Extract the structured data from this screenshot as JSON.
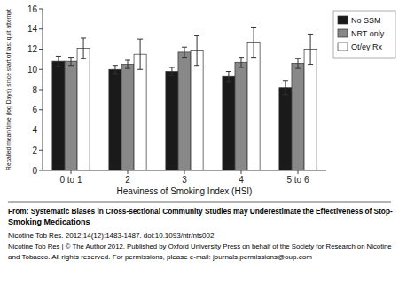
{
  "chart_data": {
    "type": "bar",
    "xlabel": "Heaviness of Smoking Index (HSI)",
    "ylabel": "Recalled mean time (log Days) since start of last quit attempt",
    "categories": [
      "0 to 1",
      "2",
      "3",
      "4",
      "5 to 6"
    ],
    "series": [
      {
        "name": "No SSM",
        "color": "#1a1a1a",
        "values": [
          10.8,
          10.0,
          9.8,
          9.3,
          8.2
        ],
        "errors": [
          0.5,
          0.4,
          0.4,
          0.5,
          0.7
        ]
      },
      {
        "name": "NRT only",
        "color": "#888888",
        "values": [
          10.8,
          10.5,
          11.7,
          10.7,
          10.6
        ],
        "errors": [
          0.4,
          0.4,
          0.5,
          0.5,
          0.5
        ]
      },
      {
        "name": "Ot/ey Rx",
        "color": "#ffffff",
        "values": [
          12.1,
          11.5,
          11.9,
          12.7,
          12.0
        ],
        "errors": [
          1.0,
          1.5,
          1.5,
          1.5,
          1.5
        ]
      }
    ],
    "ylim": [
      0,
      16
    ],
    "yticks": [
      0,
      2,
      4,
      6,
      8,
      10,
      12,
      14,
      16
    ],
    "grid": false,
    "legend": "upper right",
    "annotations": [
      "From: Systematic Biases in Cross-sectional Community Studies may Underestimate the Effectiveness of Stop-",
      "Smoking Medications",
      "Nicotine Tob Res. 2012;14(12):1483-1487. doi:10.1093/ntr/nts002",
      "Nicotine Tob Res | © The Author 2012. Published by Oxford University Press on behalf of the Society for Research on Nicotine",
      "and Tobacco. All rights reserved. For permissions, please e-mail: journals.permissions@oup.com"
    ]
  }
}
